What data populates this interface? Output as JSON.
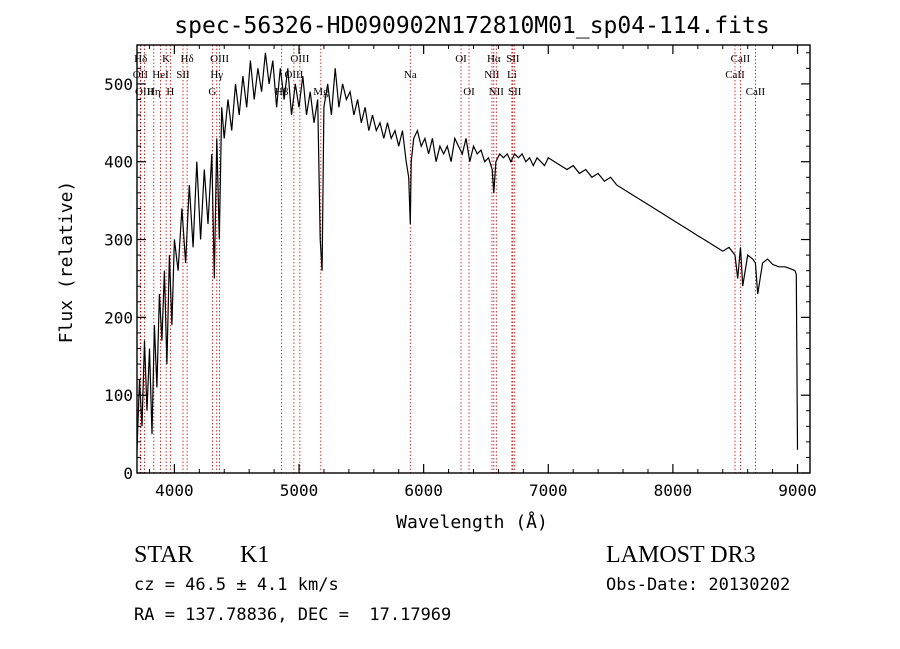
{
  "chart_data": {
    "type": "line",
    "title": "spec-56326-HD090902N172810M01_sp04-114.fits",
    "xlabel": "Wavelength (Å)",
    "ylabel": "Flux (relative)",
    "xlim": [
      3700,
      9100
    ],
    "ylim": [
      0,
      550
    ],
    "xticks": [
      4000,
      5000,
      6000,
      7000,
      8000,
      9000
    ],
    "yticks": [
      0,
      100,
      200,
      300,
      400,
      500
    ],
    "series": [
      {
        "name": "spectrum",
        "x": [
          3700,
          3720,
          3740,
          3760,
          3780,
          3800,
          3820,
          3840,
          3860,
          3880,
          3900,
          3920,
          3940,
          3960,
          3980,
          4000,
          4030,
          4060,
          4090,
          4120,
          4150,
          4180,
          4210,
          4240,
          4270,
          4300,
          4320,
          4340,
          4360,
          4380,
          4400,
          4430,
          4460,
          4490,
          4520,
          4550,
          4580,
          4610,
          4640,
          4670,
          4700,
          4730,
          4760,
          4790,
          4820,
          4850,
          4880,
          4910,
          4940,
          4970,
          5000,
          5030,
          5060,
          5090,
          5120,
          5150,
          5170,
          5185,
          5200,
          5230,
          5260,
          5290,
          5320,
          5350,
          5380,
          5410,
          5440,
          5470,
          5500,
          5530,
          5560,
          5590,
          5620,
          5650,
          5680,
          5710,
          5740,
          5770,
          5800,
          5830,
          5860,
          5880,
          5893,
          5900,
          5920,
          5950,
          5980,
          6010,
          6040,
          6070,
          6100,
          6130,
          6160,
          6190,
          6220,
          6250,
          6280,
          6310,
          6340,
          6370,
          6400,
          6430,
          6460,
          6490,
          6520,
          6550,
          6563,
          6580,
          6610,
          6640,
          6670,
          6700,
          6730,
          6760,
          6790,
          6820,
          6850,
          6880,
          6910,
          6940,
          6970,
          7000,
          7050,
          7100,
          7150,
          7200,
          7250,
          7300,
          7350,
          7400,
          7450,
          7500,
          7550,
          7600,
          7650,
          7700,
          7750,
          7800,
          7850,
          7900,
          7950,
          8000,
          8050,
          8100,
          8150,
          8200,
          8250,
          8300,
          8350,
          8400,
          8450,
          8498,
          8520,
          8542,
          8560,
          8600,
          8640,
          8662,
          8680,
          8720,
          8760,
          8800,
          8850,
          8900,
          8950,
          8980,
          8990,
          9000
        ],
        "y": [
          30,
          120,
          60,
          170,
          80,
          160,
          50,
          190,
          110,
          230,
          170,
          260,
          140,
          280,
          190,
          300,
          260,
          340,
          270,
          370,
          290,
          400,
          300,
          390,
          320,
          410,
          250,
          430,
          300,
          470,
          430,
          480,
          440,
          500,
          460,
          510,
          470,
          530,
          480,
          520,
          490,
          540,
          500,
          530,
          470,
          520,
          480,
          520,
          460,
          500,
          470,
          510,
          460,
          490,
          450,
          480,
          300,
          260,
          470,
          500,
          460,
          520,
          470,
          500,
          480,
          490,
          460,
          480,
          450,
          470,
          440,
          460,
          440,
          450,
          430,
          450,
          430,
          440,
          420,
          440,
          400,
          380,
          320,
          400,
          430,
          440,
          420,
          430,
          410,
          430,
          400,
          420,
          410,
          420,
          400,
          430,
          420,
          410,
          430,
          400,
          420,
          410,
          415,
          400,
          405,
          390,
          360,
          400,
          410,
          405,
          410,
          400,
          410,
          405,
          410,
          400,
          405,
          395,
          405,
          400,
          395,
          405,
          400,
          395,
          390,
          395,
          385,
          390,
          380,
          385,
          375,
          380,
          370,
          365,
          360,
          355,
          350,
          345,
          340,
          335,
          330,
          325,
          320,
          315,
          310,
          305,
          300,
          295,
          290,
          285,
          290,
          280,
          250,
          290,
          240,
          280,
          275,
          270,
          230,
          270,
          275,
          268,
          265,
          265,
          262,
          260,
          255,
          30
        ]
      }
    ],
    "line_markers": [
      {
        "label": "Hδ",
        "wavelength": 3730,
        "row": 1
      },
      {
        "label": "K",
        "wavelength": 3934,
        "row": 1
      },
      {
        "label": "Hδ",
        "wavelength": 4102,
        "row": 1
      },
      {
        "label": "OII",
        "wavelength": 3727,
        "row": 2
      },
      {
        "label": "HeI",
        "wavelength": 3889,
        "row": 2
      },
      {
        "label": "SII",
        "wavelength": 4069,
        "row": 2
      },
      {
        "label": "OIII",
        "wavelength": 3760,
        "row": 3
      },
      {
        "label": "Hη",
        "wavelength": 3835,
        "row": 3
      },
      {
        "label": "H",
        "wavelength": 3968,
        "row": 3
      },
      {
        "label": "OIII",
        "wavelength": 4363,
        "row": 1
      },
      {
        "label": "Hγ",
        "wavelength": 4340,
        "row": 2
      },
      {
        "label": "G",
        "wavelength": 4305,
        "row": 3
      },
      {
        "label": "OIII",
        "wavelength": 5007,
        "row": 1
      },
      {
        "label": "OIII",
        "wavelength": 4959,
        "row": 2
      },
      {
        "label": "Hβ",
        "wavelength": 4861,
        "row": 3
      },
      {
        "label": "Mg",
        "wavelength": 5175,
        "row": 3
      },
      {
        "label": "Na",
        "wavelength": 5893,
        "row": 2
      },
      {
        "label": "OI",
        "wavelength": 6300,
        "row": 1
      },
      {
        "label": "OI",
        "wavelength": 6364,
        "row": 3
      },
      {
        "label": "Hα",
        "wavelength": 6563,
        "row": 1
      },
      {
        "label": "NII",
        "wavelength": 6548,
        "row": 2
      },
      {
        "label": "NII",
        "wavelength": 6583,
        "row": 3
      },
      {
        "label": "SII",
        "wavelength": 6716,
        "row": 1
      },
      {
        "label": "Li",
        "wavelength": 6708,
        "row": 2
      },
      {
        "label": "SII",
        "wavelength": 6731,
        "row": 3
      },
      {
        "label": "CaII",
        "wavelength": 8542,
        "row": 1
      },
      {
        "label": "CaII",
        "wavelength": 8498,
        "row": 2
      },
      {
        "label": "CaII",
        "wavelength": 8662,
        "row": 3
      }
    ]
  },
  "info": {
    "object_class": "STAR",
    "subclass": "K1",
    "survey": "LAMOST DR3",
    "redshift": "cz = 46.5 ± 4.1 km/s",
    "obs_date": "Obs-Date: 20130202",
    "coords": "RA = 137.78836, DEC =  17.17969"
  },
  "colors": {
    "spectrum": "#000000",
    "markers": "#c00000",
    "axes": "#000000"
  }
}
